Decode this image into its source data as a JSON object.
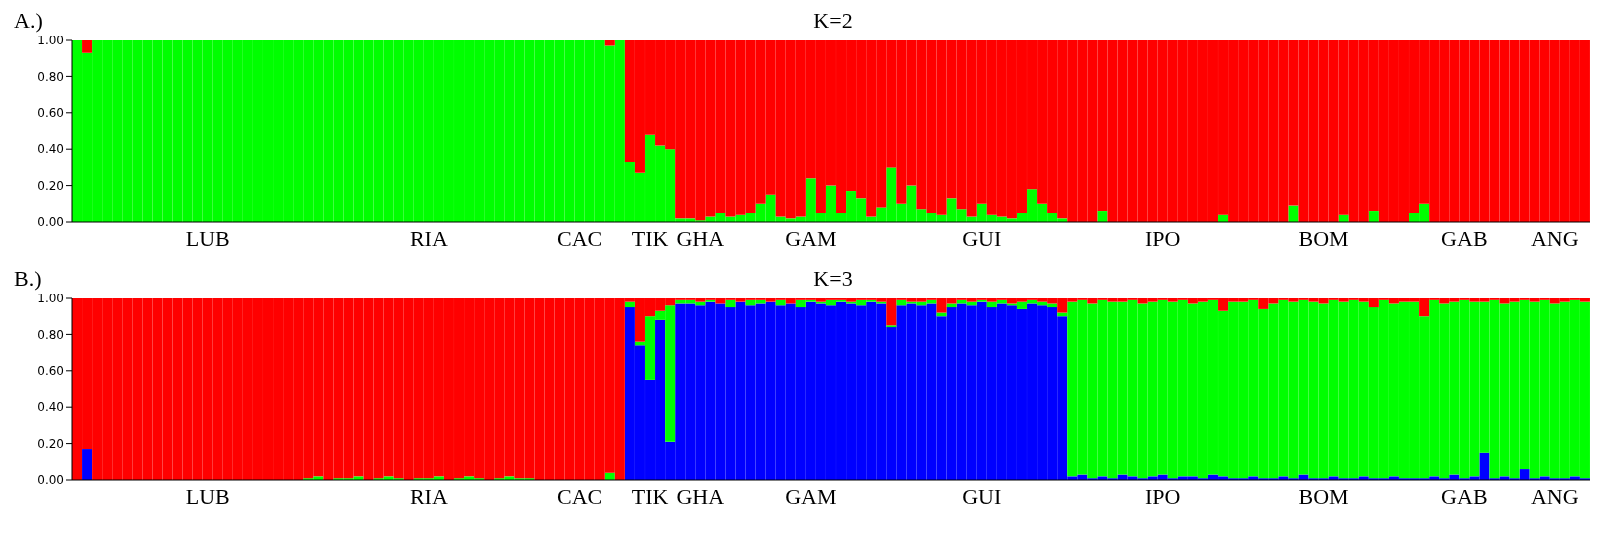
{
  "chart_data": [
    {
      "type": "bar",
      "title": "K=2",
      "annotations": [
        "A.)"
      ],
      "stacked": true,
      "ylim": [
        0,
        1
      ],
      "yticks": [
        {
          "value": 0,
          "label": "0.00"
        },
        {
          "value": 0.2,
          "label": "0.20"
        },
        {
          "value": 0.4,
          "label": "0.40"
        },
        {
          "value": 0.6,
          "label": "0.60"
        },
        {
          "value": 0.8,
          "label": "0.80"
        },
        {
          "value": 1,
          "label": "1.00"
        }
      ],
      "categories": [
        null,
        null,
        null,
        null,
        null,
        null,
        null,
        null,
        null,
        null,
        null,
        null,
        null,
        "LUB",
        null,
        null,
        null,
        null,
        null,
        null,
        null,
        null,
        null,
        null,
        null,
        null,
        null,
        null,
        null,
        null,
        null,
        null,
        null,
        null,
        null,
        "RIA",
        null,
        null,
        null,
        null,
        null,
        null,
        null,
        null,
        null,
        null,
        null,
        null,
        null,
        null,
        "CAC",
        null,
        null,
        null,
        null,
        null,
        null,
        "TIK",
        null,
        null,
        null,
        null,
        "GHA",
        null,
        null,
        null,
        null,
        null,
        null,
        null,
        null,
        null,
        null,
        "GAM",
        null,
        null,
        null,
        null,
        null,
        null,
        null,
        null,
        null,
        null,
        null,
        null,
        null,
        null,
        null,
        null,
        "GUI",
        null,
        null,
        null,
        null,
        null,
        null,
        null,
        null,
        null,
        null,
        null,
        null,
        null,
        null,
        null,
        null,
        null,
        "IPO",
        null,
        null,
        null,
        null,
        null,
        null,
        null,
        null,
        null,
        null,
        null,
        null,
        null,
        null,
        null,
        "BOM",
        null,
        null,
        null,
        null,
        null,
        null,
        null,
        null,
        null,
        null,
        null,
        null,
        null,
        "GAB",
        null,
        null,
        null,
        null,
        null,
        null,
        null,
        null,
        "ANG",
        null,
        null,
        null
      ],
      "series": [
        {
          "color": "#00ff00",
          "values": [
            1,
            0.93,
            1,
            1,
            1,
            1,
            1,
            1,
            1,
            1,
            1,
            1,
            1,
            1,
            1,
            1,
            1,
            1,
            1,
            1,
            1,
            1,
            1,
            1,
            1,
            1,
            1,
            1,
            1,
            1,
            1,
            1,
            1,
            1,
            1,
            1,
            1,
            1,
            1,
            1,
            1,
            1,
            1,
            1,
            1,
            1,
            1,
            1,
            1,
            1,
            1,
            1,
            1,
            0.97,
            1,
            0.33,
            0.27,
            0.48,
            0.42,
            0.4,
            0.02,
            0.02,
            0.01,
            0.03,
            0.05,
            0.03,
            0.04,
            0.05,
            0.1,
            0.15,
            0.03,
            0.02,
            0.03,
            0.24,
            0.05,
            0.2,
            0.05,
            0.17,
            0.13,
            0.03,
            0.08,
            0.3,
            0.1,
            0.2,
            0.07,
            0.05,
            0.04,
            0.13,
            0.07,
            0.03,
            0.1,
            0.04,
            0.03,
            0.02,
            0.05,
            0.18,
            0.1,
            0.05,
            0.02,
            0,
            0,
            0,
            0.06,
            0,
            0,
            0,
            0,
            0,
            0,
            0,
            0,
            0,
            0,
            0,
            0.04,
            0,
            0,
            0,
            0,
            0,
            0,
            0.09,
            0,
            0,
            0,
            0,
            0.04,
            0,
            0,
            0.06,
            0,
            0,
            0,
            0.05,
            0.1,
            0,
            0,
            0,
            0,
            0,
            0,
            0,
            0,
            0,
            0,
            0,
            0,
            0,
            0,
            0,
            0
          ]
        },
        {
          "color": "#ff0000",
          "values": [
            0,
            0.07,
            0,
            0,
            0,
            0,
            0,
            0,
            0,
            0,
            0,
            0,
            0,
            0,
            0,
            0,
            0,
            0,
            0,
            0,
            0,
            0,
            0,
            0,
            0,
            0,
            0,
            0,
            0,
            0,
            0,
            0,
            0,
            0,
            0,
            0,
            0,
            0,
            0,
            0,
            0,
            0,
            0,
            0,
            0,
            0,
            0,
            0,
            0,
            0,
            0,
            0,
            0,
            0.03,
            0,
            0.67,
            0.73,
            0.52,
            0.58,
            0.6,
            0.98,
            0.98,
            0.99,
            0.97,
            0.95,
            0.97,
            0.96,
            0.95,
            0.9,
            0.85,
            0.97,
            0.98,
            0.97,
            0.76,
            0.95,
            0.8,
            0.95,
            0.83,
            0.87,
            0.97,
            0.92,
            0.7,
            0.9,
            0.8,
            0.93,
            0.95,
            0.96,
            0.87,
            0.93,
            0.97,
            0.9,
            0.96,
            0.97,
            0.98,
            0.95,
            0.82,
            0.9,
            0.95,
            0.98,
            1,
            1,
            1,
            0.94,
            1,
            1,
            1,
            1,
            1,
            1,
            1,
            1,
            1,
            1,
            1,
            0.96,
            1,
            1,
            1,
            1,
            1,
            1,
            0.91,
            1,
            1,
            1,
            1,
            0.96,
            1,
            1,
            0.94,
            1,
            1,
            1,
            0.95,
            0.9,
            1,
            1,
            1,
            1,
            1,
            1,
            1,
            1,
            1,
            1,
            1,
            1,
            1,
            1,
            1,
            1
          ]
        }
      ]
    },
    {
      "type": "bar",
      "title": "K=3",
      "annotations": [
        "B.)"
      ],
      "stacked": true,
      "ylim": [
        0,
        1
      ],
      "yticks": [
        {
          "value": 0,
          "label": "0.00"
        },
        {
          "value": 0.2,
          "label": "0.20"
        },
        {
          "value": 0.4,
          "label": "0.40"
        },
        {
          "value": 0.6,
          "label": "0.60"
        },
        {
          "value": 0.8,
          "label": "0.80"
        },
        {
          "value": 1,
          "label": "1.00"
        }
      ],
      "categories": [
        null,
        null,
        null,
        null,
        null,
        null,
        null,
        null,
        null,
        null,
        null,
        null,
        null,
        "LUB",
        null,
        null,
        null,
        null,
        null,
        null,
        null,
        null,
        null,
        null,
        null,
        null,
        null,
        null,
        null,
        null,
        null,
        null,
        null,
        null,
        null,
        "RIA",
        null,
        null,
        null,
        null,
        null,
        null,
        null,
        null,
        null,
        null,
        null,
        null,
        null,
        null,
        "CAC",
        null,
        null,
        null,
        null,
        null,
        null,
        "TIK",
        null,
        null,
        null,
        null,
        "GHA",
        null,
        null,
        null,
        null,
        null,
        null,
        null,
        null,
        null,
        null,
        "GAM",
        null,
        null,
        null,
        null,
        null,
        null,
        null,
        null,
        null,
        null,
        null,
        null,
        null,
        null,
        null,
        null,
        "GUI",
        null,
        null,
        null,
        null,
        null,
        null,
        null,
        null,
        null,
        null,
        null,
        null,
        null,
        null,
        null,
        null,
        null,
        "IPO",
        null,
        null,
        null,
        null,
        null,
        null,
        null,
        null,
        null,
        null,
        null,
        null,
        null,
        null,
        null,
        "BOM",
        null,
        null,
        null,
        null,
        null,
        null,
        null,
        null,
        null,
        null,
        null,
        null,
        null,
        "GAB",
        null,
        null,
        null,
        null,
        null,
        null,
        null,
        null,
        "ANG",
        null,
        null,
        null
      ],
      "series": [
        {
          "color": "#0000ff",
          "values": [
            0,
            0.17,
            0,
            0,
            0,
            0,
            0,
            0,
            0,
            0,
            0,
            0,
            0,
            0,
            0,
            0,
            0,
            0,
            0,
            0,
            0,
            0,
            0,
            0,
            0,
            0,
            0,
            0,
            0,
            0,
            0,
            0,
            0,
            0,
            0,
            0,
            0,
            0,
            0,
            0,
            0,
            0,
            0,
            0,
            0,
            0,
            0,
            0,
            0,
            0,
            0,
            0,
            0,
            0,
            0,
            0.95,
            0.74,
            0.55,
            0.88,
            0.21,
            0.97,
            0.97,
            0.96,
            0.98,
            0.97,
            0.95,
            0.98,
            0.96,
            0.97,
            0.98,
            0.96,
            0.97,
            0.95,
            0.98,
            0.97,
            0.96,
            0.98,
            0.97,
            0.96,
            0.98,
            0.97,
            0.84,
            0.96,
            0.97,
            0.96,
            0.97,
            0.9,
            0.95,
            0.97,
            0.96,
            0.98,
            0.95,
            0.97,
            0.96,
            0.94,
            0.97,
            0.96,
            0.95,
            0.9,
            0.02,
            0.03,
            0.01,
            0.02,
            0.01,
            0.03,
            0.02,
            0.01,
            0.02,
            0.03,
            0.01,
            0.02,
            0.02,
            0.01,
            0.03,
            0.02,
            0.01,
            0.01,
            0.02,
            0.01,
            0.01,
            0.02,
            0.01,
            0.03,
            0.01,
            0.01,
            0.02,
            0.01,
            0.01,
            0.02,
            0.01,
            0.01,
            0.02,
            0.01,
            0.01,
            0.01,
            0.02,
            0.01,
            0.03,
            0.01,
            0.02,
            0.15,
            0.01,
            0.02,
            0.01,
            0.06,
            0.01,
            0.02,
            0.01,
            0.01,
            0.02,
            0.01
          ]
        },
        {
          "color": "#00ff00",
          "values": [
            0,
            0,
            0,
            0,
            0,
            0,
            0,
            0,
            0,
            0,
            0,
            0,
            0,
            0,
            0,
            0,
            0,
            0,
            0,
            0,
            0,
            0,
            0,
            0.01,
            0.02,
            0,
            0.01,
            0.01,
            0.02,
            0,
            0.01,
            0.02,
            0.01,
            0,
            0.01,
            0.01,
            0.02,
            0,
            0.01,
            0.02,
            0.01,
            0,
            0.01,
            0.02,
            0.01,
            0.01,
            0,
            0,
            0,
            0,
            0,
            0,
            0,
            0.04,
            0,
            0.03,
            0.02,
            0.35,
            0.05,
            0.75,
            0.02,
            0.02,
            0.02,
            0.01,
            0,
            0.04,
            0,
            0.03,
            0.02,
            0,
            0.03,
            0,
            0.04,
            0.01,
            0.01,
            0.03,
            0.01,
            0.01,
            0.03,
            0.01,
            0.01,
            0.01,
            0.03,
            0.01,
            0.02,
            0.02,
            0.02,
            0.02,
            0.02,
            0.02,
            0.01,
            0.03,
            0.02,
            0.01,
            0.04,
            0.02,
            0.02,
            0.02,
            0.02,
            0.96,
            0.96,
            0.96,
            0.97,
            0.97,
            0.95,
            0.97,
            0.96,
            0.96,
            0.96,
            0.97,
            0.97,
            0.95,
            0.97,
            0.96,
            0.91,
            0.97,
            0.97,
            0.97,
            0.93,
            0.96,
            0.97,
            0.97,
            0.96,
            0.97,
            0.96,
            0.97,
            0.97,
            0.98,
            0.96,
            0.94,
            0.98,
            0.95,
            0.97,
            0.97,
            0.89,
            0.97,
            0.96,
            0.95,
            0.98,
            0.96,
            0.83,
            0.98,
            0.95,
            0.97,
            0.93,
            0.97,
            0.97,
            0.96,
            0.97,
            0.97,
            0.97
          ]
        },
        {
          "color": "#ff0000",
          "values": [
            1,
            0.83,
            1,
            1,
            1,
            1,
            1,
            1,
            1,
            1,
            1,
            1,
            1,
            1,
            1,
            1,
            1,
            1,
            1,
            1,
            1,
            1,
            1,
            0.99,
            0.98,
            1,
            0.99,
            0.99,
            0.98,
            1,
            0.99,
            0.98,
            0.99,
            1,
            0.99,
            0.99,
            0.98,
            1,
            0.99,
            0.98,
            0.99,
            1,
            0.99,
            0.98,
            0.99,
            0.99,
            1,
            1,
            1,
            1,
            1,
            1,
            1,
            0.96,
            1,
            0.02,
            0.24,
            0.1,
            0.07,
            0.04,
            0.01,
            0.01,
            0.02,
            0.01,
            0.03,
            0.01,
            0.02,
            0.01,
            0.01,
            0.02,
            0.01,
            0.03,
            0.01,
            0.01,
            0.02,
            0.01,
            0.01,
            0.02,
            0.01,
            0.01,
            0.02,
            0.15,
            0.01,
            0.02,
            0.02,
            0.01,
            0.08,
            0.03,
            0.01,
            0.02,
            0.01,
            0.02,
            0.01,
            0.03,
            0.02,
            0.01,
            0.02,
            0.03,
            0.08,
            0.02,
            0.01,
            0.03,
            0.01,
            0.02,
            0.02,
            0.01,
            0.03,
            0.02,
            0.01,
            0.02,
            0.01,
            0.03,
            0.02,
            0.01,
            0.07,
            0.02,
            0.02,
            0.01,
            0.06,
            0.03,
            0.01,
            0.02,
            0.01,
            0.02,
            0.03,
            0.01,
            0.02,
            0.01,
            0.02,
            0.05,
            0.01,
            0.03,
            0.02,
            0.02,
            0.1,
            0.01,
            0.03,
            0.02,
            0.01,
            0.02,
            0.02,
            0.01,
            0.03,
            0.02,
            0.01,
            0.02,
            0.01,
            0.03,
            0.02,
            0.01,
            0.02
          ]
        }
      ]
    }
  ]
}
